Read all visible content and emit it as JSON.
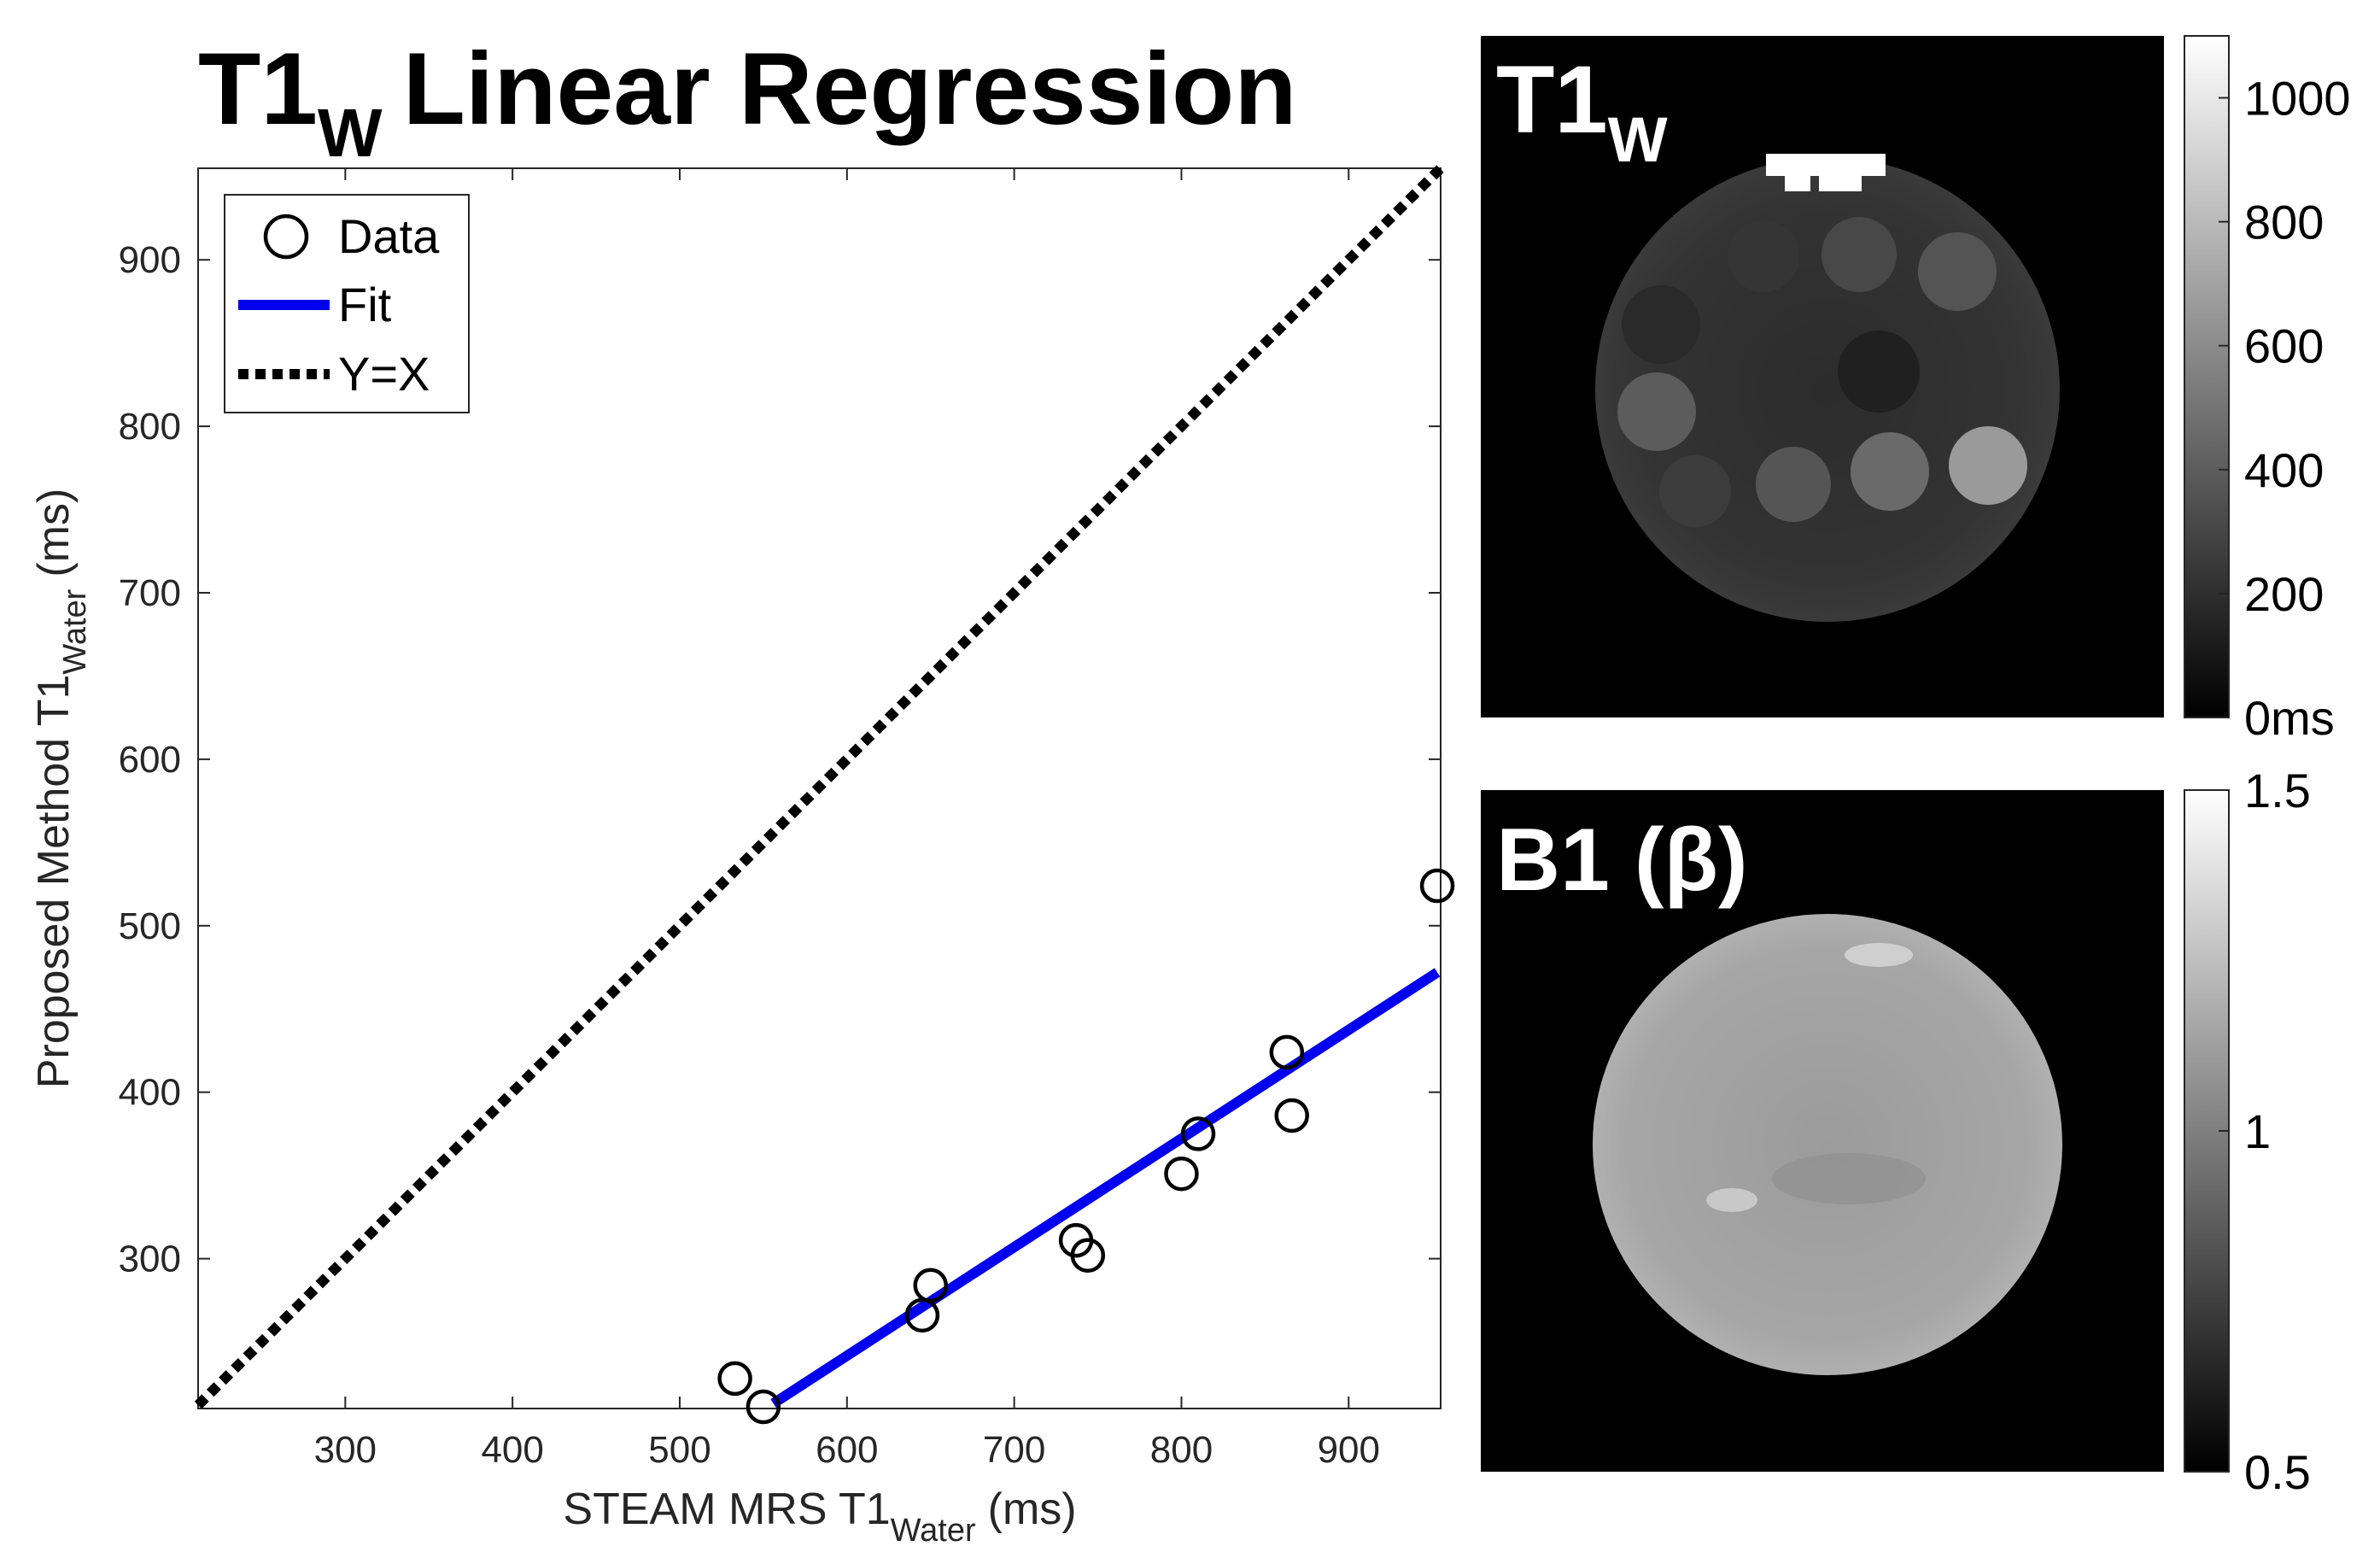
{
  "chart_data": [
    {
      "type": "scatter",
      "title_main": "T1",
      "title_sub": "W",
      "title_rest": "Linear Regression",
      "xlabel_main": "STEAM MRS T1",
      "xlabel_sub": "Water",
      "xlabel_unit": "(ms)",
      "ylabel_main": "Proposed Method T1",
      "ylabel_sub": "Water",
      "ylabel_unit": "(ms)",
      "xlim": [
        212,
        955
      ],
      "ylim": [
        210,
        955
      ],
      "xticks": [
        "300",
        "400",
        "500",
        "600",
        "700",
        "800",
        "900"
      ],
      "yticks": [
        "300",
        "400",
        "500",
        "600",
        "700",
        "800",
        "900"
      ],
      "grid": false,
      "legend_position": "top-left",
      "legend": [
        "Data",
        "Fit",
        "Y=X"
      ],
      "series": [
        {
          "name": "Data",
          "marker": "open-circle",
          "color": "#000000",
          "points": [
            [
              533,
              228
            ],
            [
              550,
              211
            ],
            [
              645,
              266
            ],
            [
              650,
              284
            ],
            [
              737,
              311
            ],
            [
              744,
              302
            ],
            [
              800,
              351
            ],
            [
              810,
              375
            ],
            [
              863,
              424
            ],
            [
              866,
              386
            ],
            [
              953,
              524
            ]
          ]
        },
        {
          "name": "Fit",
          "style": "solid",
          "color": "#0000ee",
          "points": [
            [
              556,
              213
            ],
            [
              953,
              472
            ]
          ]
        },
        {
          "name": "Y=X",
          "style": "dotted",
          "color": "#000000",
          "points": [
            [
              212,
              212
            ],
            [
              955,
              955
            ]
          ]
        }
      ]
    },
    {
      "type": "heatmap",
      "panel_title_main": "T1",
      "panel_title_sub": "W",
      "colormap": "gray",
      "colorbar_range": [
        0,
        1100
      ],
      "colorbar_ticks": [
        "0ms",
        "200",
        "400",
        "600",
        "800",
        "1000"
      ],
      "colorbar_values": [
        0,
        200,
        400,
        600,
        800,
        1000
      ]
    },
    {
      "type": "heatmap",
      "panel_title": "B1 (β)",
      "colormap": "gray",
      "colorbar_range": [
        0.5,
        1.5
      ],
      "colorbar_ticks": [
        "0.5",
        "1",
        "1.5"
      ],
      "colorbar_values": [
        0.5,
        1,
        1.5
      ]
    }
  ]
}
